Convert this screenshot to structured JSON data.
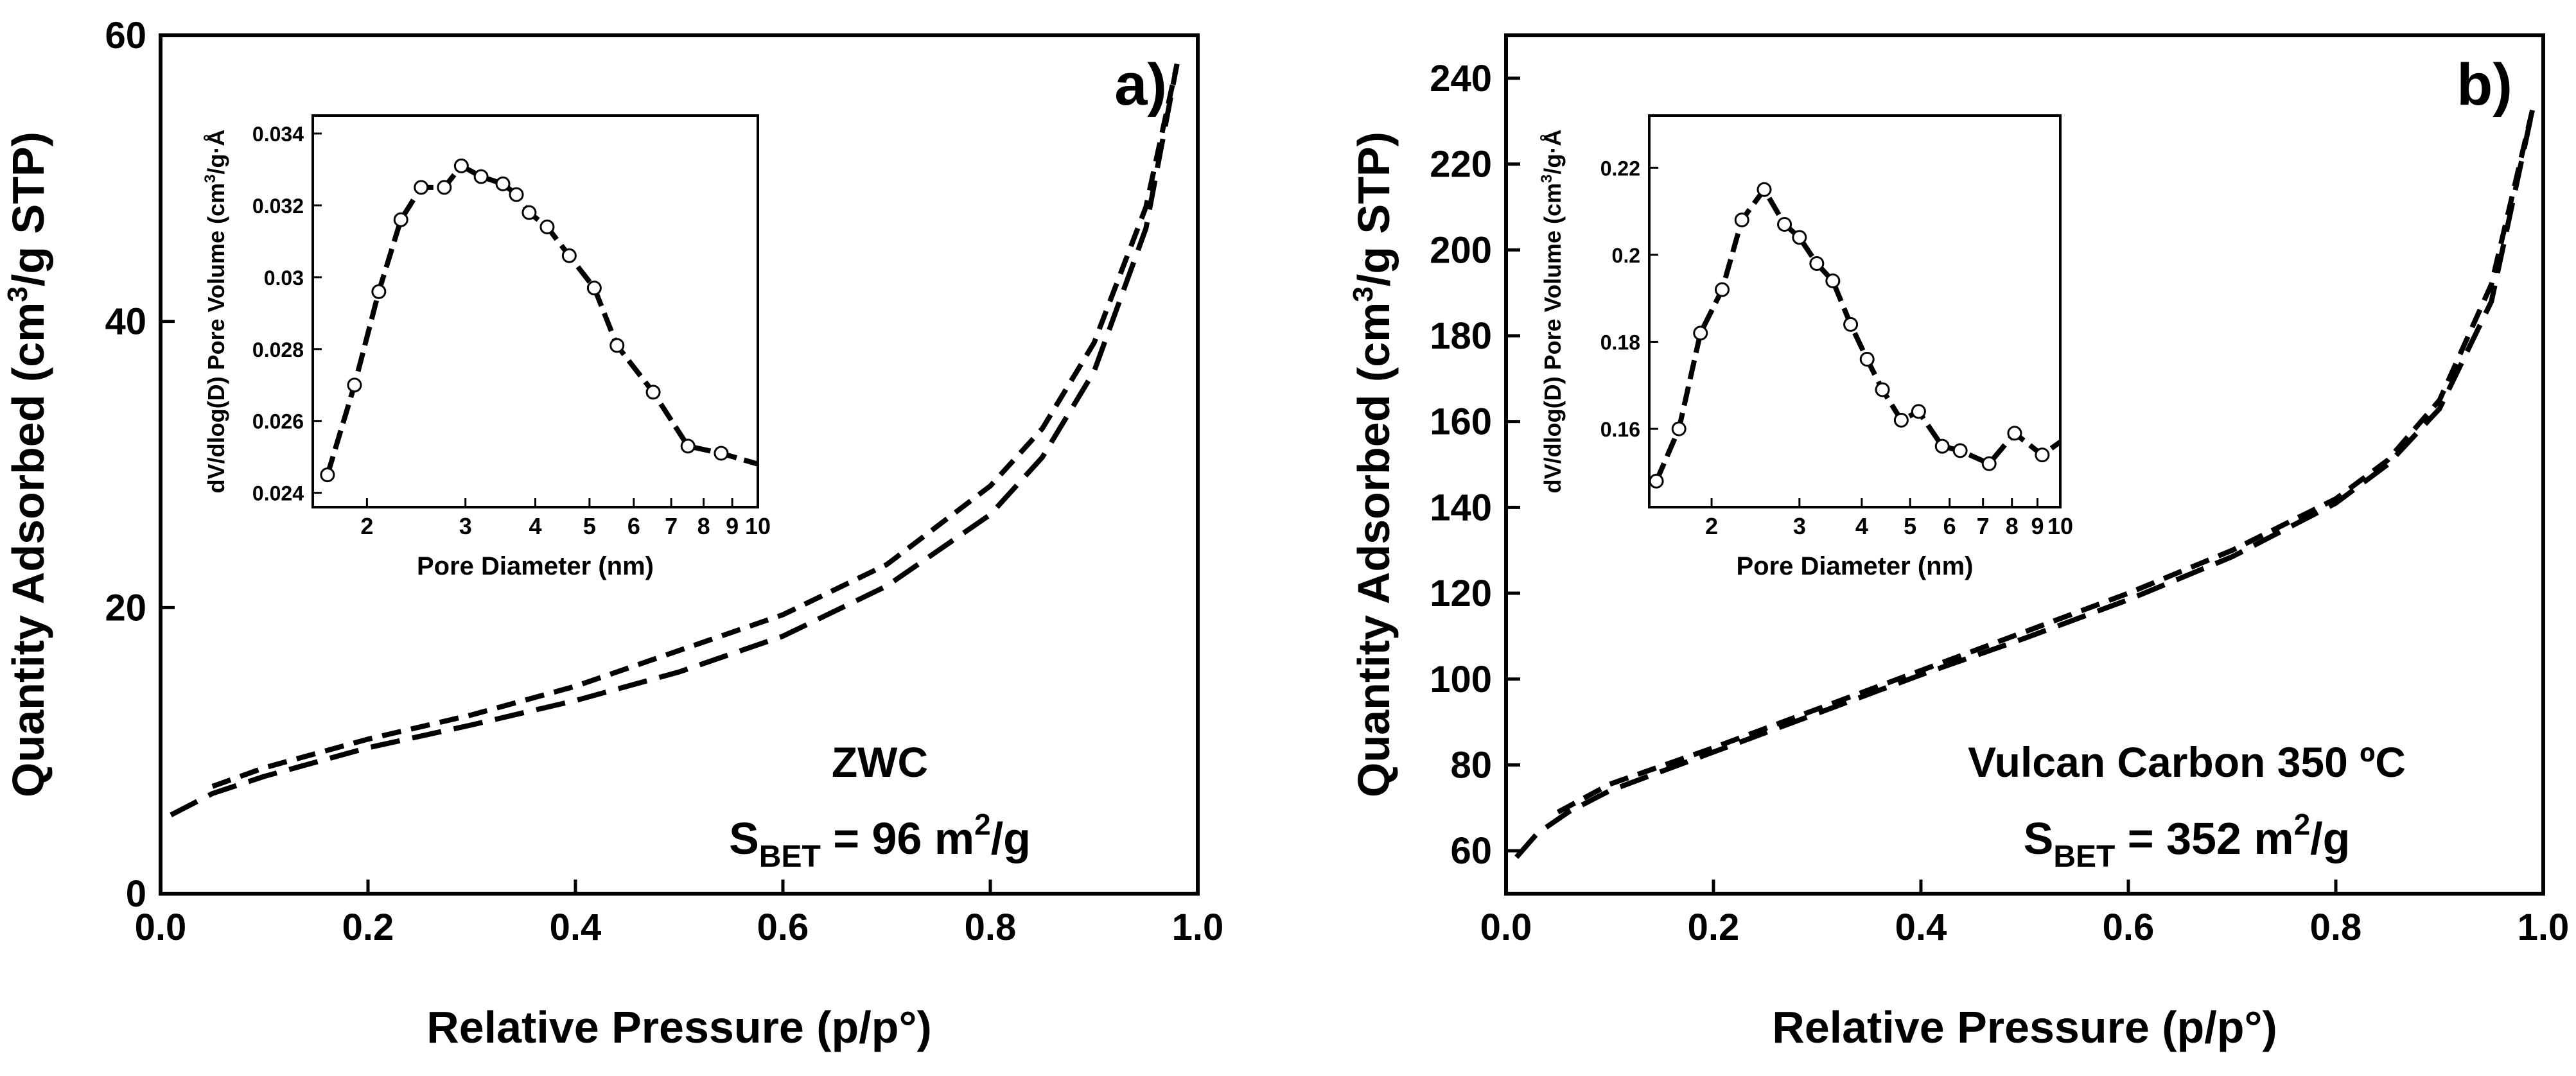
{
  "chart_data": [
    {
      "id": "a",
      "type": "line",
      "panel_label": "a)",
      "xlabel": "Relative Pressure (p/p°)",
      "ylabel_pre": "Quantity Adsorbed (cm",
      "ylabel_sup": "3",
      "ylabel_post": "/g STP)",
      "xlim": [
        0.0,
        1.0
      ],
      "ylim": [
        0,
        60
      ],
      "xticks": [
        "0.0",
        "0.2",
        "0.4",
        "0.6",
        "0.8",
        "1.0"
      ],
      "yticks": [
        "0",
        "20",
        "40",
        "60"
      ],
      "sample_name": "ZWC",
      "sbet": {
        "s": "S",
        "sub": "BET",
        "eq": " = 96 m",
        "sup": "2",
        "unit": "/g"
      },
      "series": [
        {
          "name": "adsorption",
          "x": [
            0.01,
            0.05,
            0.1,
            0.2,
            0.3,
            0.4,
            0.5,
            0.6,
            0.7,
            0.8,
            0.85,
            0.9,
            0.95,
            0.98
          ],
          "y": [
            5.5,
            7.0,
            8.2,
            10.2,
            11.8,
            13.5,
            15.5,
            18.0,
            21.5,
            26.5,
            30.5,
            36.5,
            46.5,
            58.0
          ]
        },
        {
          "name": "desorption",
          "x": [
            0.05,
            0.1,
            0.2,
            0.3,
            0.4,
            0.5,
            0.6,
            0.7,
            0.8,
            0.85,
            0.9,
            0.95,
            0.98
          ],
          "y": [
            7.5,
            8.8,
            10.8,
            12.5,
            14.5,
            17.0,
            19.5,
            23.0,
            28.5,
            32.5,
            38.5,
            48.0,
            58.0
          ]
        }
      ],
      "inset": {
        "type": "line",
        "xscale": "log",
        "xlabel": "Pore Diameter (nm)",
        "ylabel_pre": "dV/dlog(D) Pore Volume (cm",
        "ylabel_sup": "3",
        "ylabel_post": "/g·Å",
        "xlim": [
          1.6,
          10
        ],
        "ylim": [
          0.0236,
          0.0345
        ],
        "xticks": [
          2,
          3,
          4,
          5,
          6,
          7,
          8,
          9,
          10
        ],
        "xticklabels": [
          "2",
          "3",
          "4",
          "5",
          "6",
          "7",
          "8",
          "9",
          "10"
        ],
        "yticks": [
          0.024,
          0.026,
          0.028,
          0.03,
          0.032,
          0.034
        ],
        "yticklabels": [
          "0.024",
          "0.026",
          "0.028",
          "0.03",
          "0.032",
          "0.034"
        ],
        "x": [
          1.7,
          1.9,
          2.1,
          2.3,
          2.5,
          2.75,
          2.95,
          3.2,
          3.5,
          3.7,
          3.9,
          4.2,
          4.6,
          5.1,
          5.6,
          6.5,
          7.5,
          8.6,
          10.0
        ],
        "y": [
          0.0245,
          0.027,
          0.0296,
          0.0316,
          0.0325,
          0.0325,
          0.0331,
          0.0328,
          0.0326,
          0.0323,
          0.0318,
          0.0314,
          0.0306,
          0.0297,
          0.0281,
          0.0268,
          0.0253,
          0.0251,
          0.0248
        ],
        "markers": [
          true,
          true,
          true,
          true,
          true,
          true,
          true,
          true,
          true,
          true,
          true,
          true,
          true,
          true,
          true,
          true,
          true,
          true,
          false
        ]
      }
    },
    {
      "id": "b",
      "type": "line",
      "panel_label": "b)",
      "xlabel": "Relative Pressure (p/p°)",
      "ylabel_pre": "Quantity Adsorbed (cm",
      "ylabel_sup": "3",
      "ylabel_post": "/g STP)",
      "xlim": [
        0.0,
        1.0
      ],
      "ylim": [
        50,
        250
      ],
      "xticks": [
        "0.0",
        "0.2",
        "0.4",
        "0.6",
        "0.8",
        "1.0"
      ],
      "yticks": [
        "60",
        "80",
        "100",
        "120",
        "140",
        "160",
        "180",
        "200",
        "220",
        "240"
      ],
      "sample_name": "Vulcan Carbon 350 ºC",
      "sbet": {
        "s": "S",
        "sub": "BET",
        "eq": " = 352 m",
        "sup": "2",
        "unit": "/g"
      },
      "series": [
        {
          "name": "adsorption",
          "x": [
            0.01,
            0.03,
            0.06,
            0.1,
            0.2,
            0.3,
            0.4,
            0.5,
            0.6,
            0.7,
            0.8,
            0.85,
            0.9,
            0.95,
            0.99
          ],
          "y": [
            58.5,
            64.0,
            69.0,
            74.0,
            83.0,
            92.0,
            101.0,
            109.5,
            118.5,
            128.5,
            141.0,
            150.0,
            163.0,
            188.0,
            233.0
          ]
        },
        {
          "name": "desorption",
          "x": [
            0.05,
            0.1,
            0.2,
            0.3,
            0.4,
            0.5,
            0.6,
            0.7,
            0.8,
            0.85,
            0.9,
            0.95,
            0.99
          ],
          "y": [
            69.0,
            75.5,
            84.0,
            93.0,
            102.0,
            111.0,
            120.0,
            130.0,
            142.0,
            151.0,
            165.0,
            192.0,
            233.0
          ]
        }
      ],
      "inset": {
        "type": "line",
        "xscale": "log",
        "xlabel": "Pore Diameter (nm)",
        "ylabel_pre": "dV/dlog(D) Pore Volume (cm",
        "ylabel_sup": "3",
        "ylabel_post": "/g·Å",
        "xlim": [
          1.5,
          10
        ],
        "ylim": [
          0.142,
          0.232
        ],
        "xticks": [
          2,
          3,
          4,
          5,
          6,
          7,
          8,
          9,
          10
        ],
        "xticklabels": [
          "2",
          "3",
          "4",
          "5",
          "6",
          "7",
          "8",
          "9",
          "10"
        ],
        "yticks": [
          0.16,
          0.18,
          0.2,
          0.22
        ],
        "yticklabels": [
          "0.16",
          "0.18",
          "0.2",
          "0.22"
        ],
        "x": [
          1.55,
          1.72,
          1.9,
          2.1,
          2.3,
          2.55,
          2.8,
          3.0,
          3.25,
          3.5,
          3.8,
          4.1,
          4.4,
          4.8,
          5.2,
          5.8,
          6.3,
          7.2,
          8.1,
          9.2,
          10.0
        ],
        "y": [
          0.148,
          0.16,
          0.182,
          0.192,
          0.208,
          0.215,
          0.207,
          0.204,
          0.198,
          0.194,
          0.184,
          0.176,
          0.169,
          0.162,
          0.164,
          0.156,
          0.155,
          0.152,
          0.159,
          0.154,
          0.157
        ],
        "markers": [
          true,
          true,
          true,
          true,
          true,
          true,
          true,
          true,
          true,
          true,
          true,
          true,
          true,
          true,
          true,
          true,
          true,
          true,
          true,
          true,
          false
        ]
      }
    }
  ]
}
